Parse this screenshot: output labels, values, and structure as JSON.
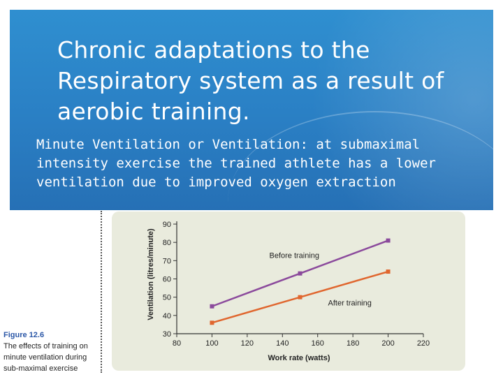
{
  "slide": {
    "title": "Chronic adaptations to the Respiratory system as a result of aerobic training.",
    "body": "Minute Ventilation or Ventilation: at submaximal intensity exercise the trained athlete has a lower ventilation due to improved oxygen extraction",
    "banner_color": "#2a7fc4"
  },
  "figure": {
    "label": "Figure 12.6",
    "caption": "The effects of training on minute ventilation during sub-maximal exercise"
  },
  "chart_data": {
    "type": "line",
    "xlabel": "Work rate (watts)",
    "ylabel": "Ventilation (litres/minute)",
    "xlim": [
      80,
      220
    ],
    "ylim": [
      30,
      90
    ],
    "xticks": [
      80,
      100,
      120,
      140,
      160,
      180,
      200,
      220
    ],
    "yticks": [
      30,
      40,
      50,
      60,
      70,
      80,
      90
    ],
    "grid": false,
    "series": [
      {
        "name": "Before training",
        "color": "#8b4a9c",
        "x": [
          100,
          150,
          200
        ],
        "y": [
          45,
          63,
          81
        ]
      },
      {
        "name": "After training",
        "color": "#e0662e",
        "x": [
          100,
          150,
          200
        ],
        "y": [
          36,
          50,
          64
        ]
      }
    ]
  }
}
